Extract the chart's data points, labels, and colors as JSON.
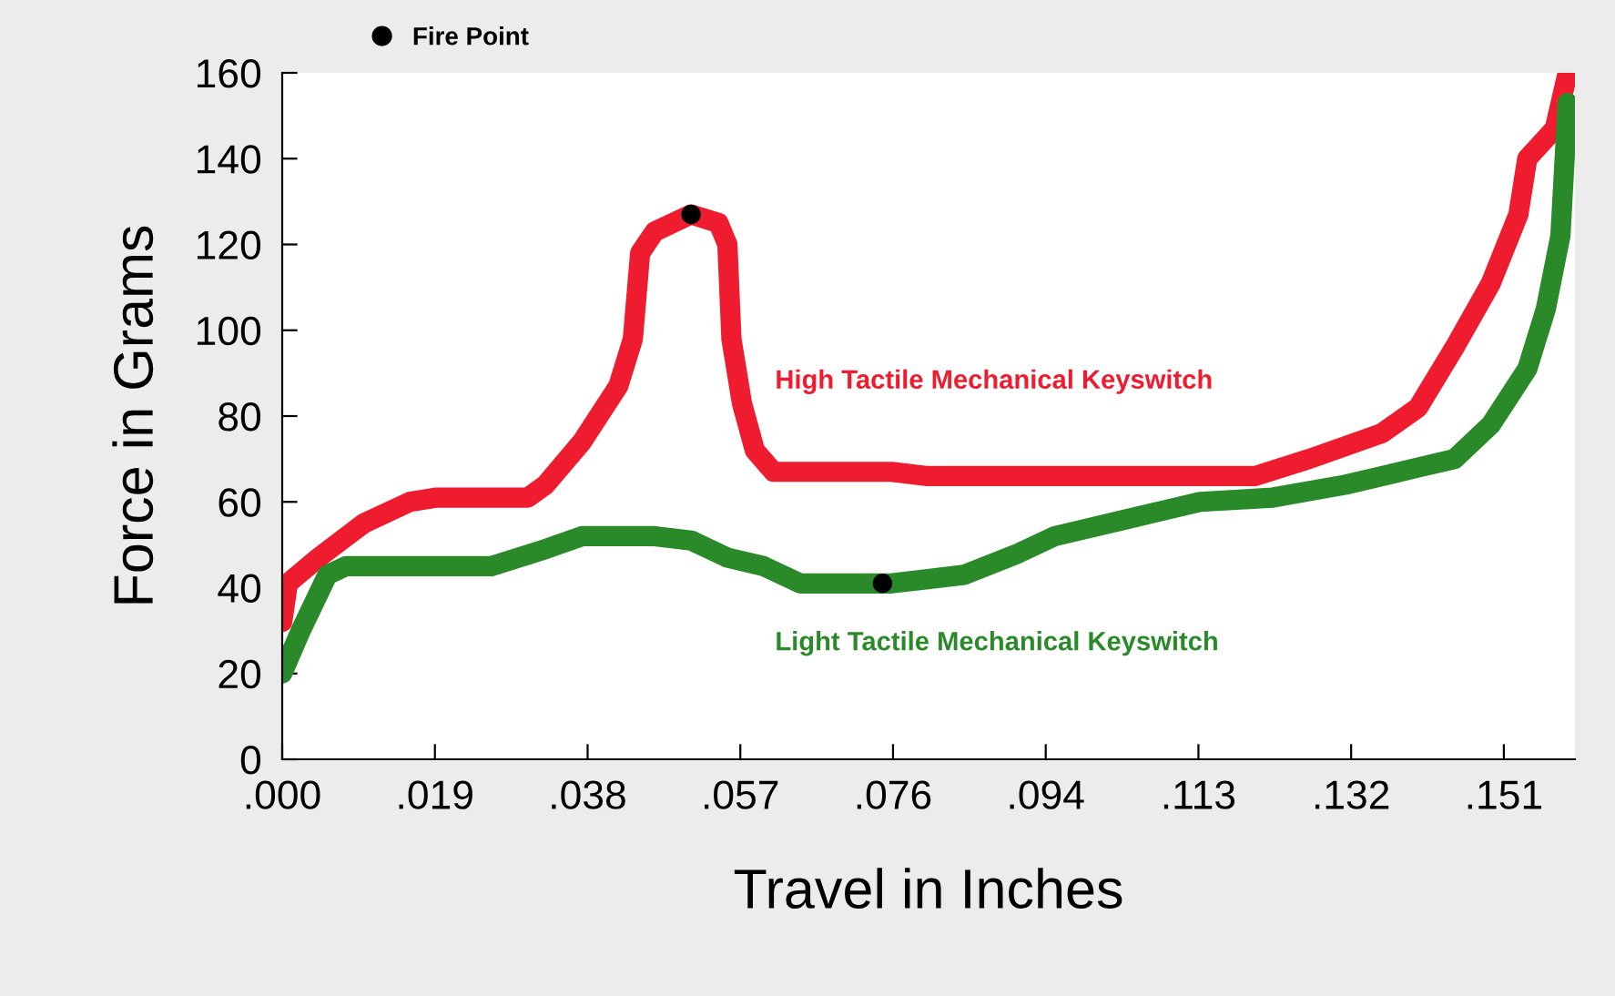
{
  "chart_data": {
    "type": "line",
    "xlabel": "Travel in Inches",
    "ylabel": "Force in Grams",
    "xlim": [
      0,
      0.16
    ],
    "ylim": [
      0,
      160
    ],
    "xticks": [
      {
        "value": 0,
        "label": ".000"
      },
      {
        "value": 0.0189,
        "label": ".019"
      },
      {
        "value": 0.0378,
        "label": ".038"
      },
      {
        "value": 0.0567,
        "label": ".057"
      },
      {
        "value": 0.0756,
        "label": ".076"
      },
      {
        "value": 0.0945,
        "label": ".094"
      },
      {
        "value": 0.1134,
        "label": ".113"
      },
      {
        "value": 0.1323,
        "label": ".132"
      },
      {
        "value": 0.1512,
        "label": ".151"
      }
    ],
    "yticks": [
      0,
      20,
      40,
      60,
      80,
      100,
      120,
      140,
      160
    ],
    "grid": false,
    "legend": "top left",
    "line_style": "solid",
    "series": [
      {
        "name": "High Tactile Mechanical Keyswitch",
        "color": "#ee1c2e",
        "x": [
          0,
          0.0007,
          0.0045,
          0.0101,
          0.0158,
          0.0191,
          0.0304,
          0.0326,
          0.0371,
          0.0416,
          0.0434,
          0.0443,
          0.0461,
          0.0506,
          0.054,
          0.0551,
          0.0556,
          0.0569,
          0.0585,
          0.0608,
          0.0754,
          0.0799,
          0.1204,
          0.1271,
          0.1361,
          0.1406,
          0.1451,
          0.1496,
          0.153,
          0.1541,
          0.1575,
          0.1591
        ],
        "values": [
          32,
          41,
          47,
          55,
          60,
          61,
          61,
          64,
          74,
          87,
          98,
          118,
          123,
          127,
          125,
          120,
          98,
          83,
          72,
          67,
          67,
          66,
          66,
          70,
          76,
          82,
          96,
          111,
          127,
          140,
          147,
          160
        ]
      },
      {
        "name": "Light Tactile Mechanical Keyswitch",
        "color": "#2a8a2a",
        "x": [
          0,
          0.0023,
          0.0056,
          0.0079,
          0.0259,
          0.0326,
          0.0371,
          0.0461,
          0.0506,
          0.0551,
          0.0596,
          0.0641,
          0.0754,
          0.0844,
          0.0911,
          0.0956,
          0.1046,
          0.1136,
          0.1226,
          0.1316,
          0.1406,
          0.1451,
          0.1496,
          0.1541,
          0.1564,
          0.1582,
          0.1591
        ],
        "values": [
          20,
          30,
          43,
          45,
          45,
          49,
          52,
          52,
          51,
          47,
          45,
          41,
          41,
          43,
          48,
          52,
          56,
          60,
          61,
          64,
          68,
          70,
          78,
          91,
          105,
          122,
          153
        ]
      },
      {
        "name": "Fire Point",
        "type": "scatter",
        "marker": "circle",
        "color": "#000000",
        "x": [
          0.0506,
          0.0743
        ],
        "values": [
          127,
          41
        ]
      }
    ]
  }
}
